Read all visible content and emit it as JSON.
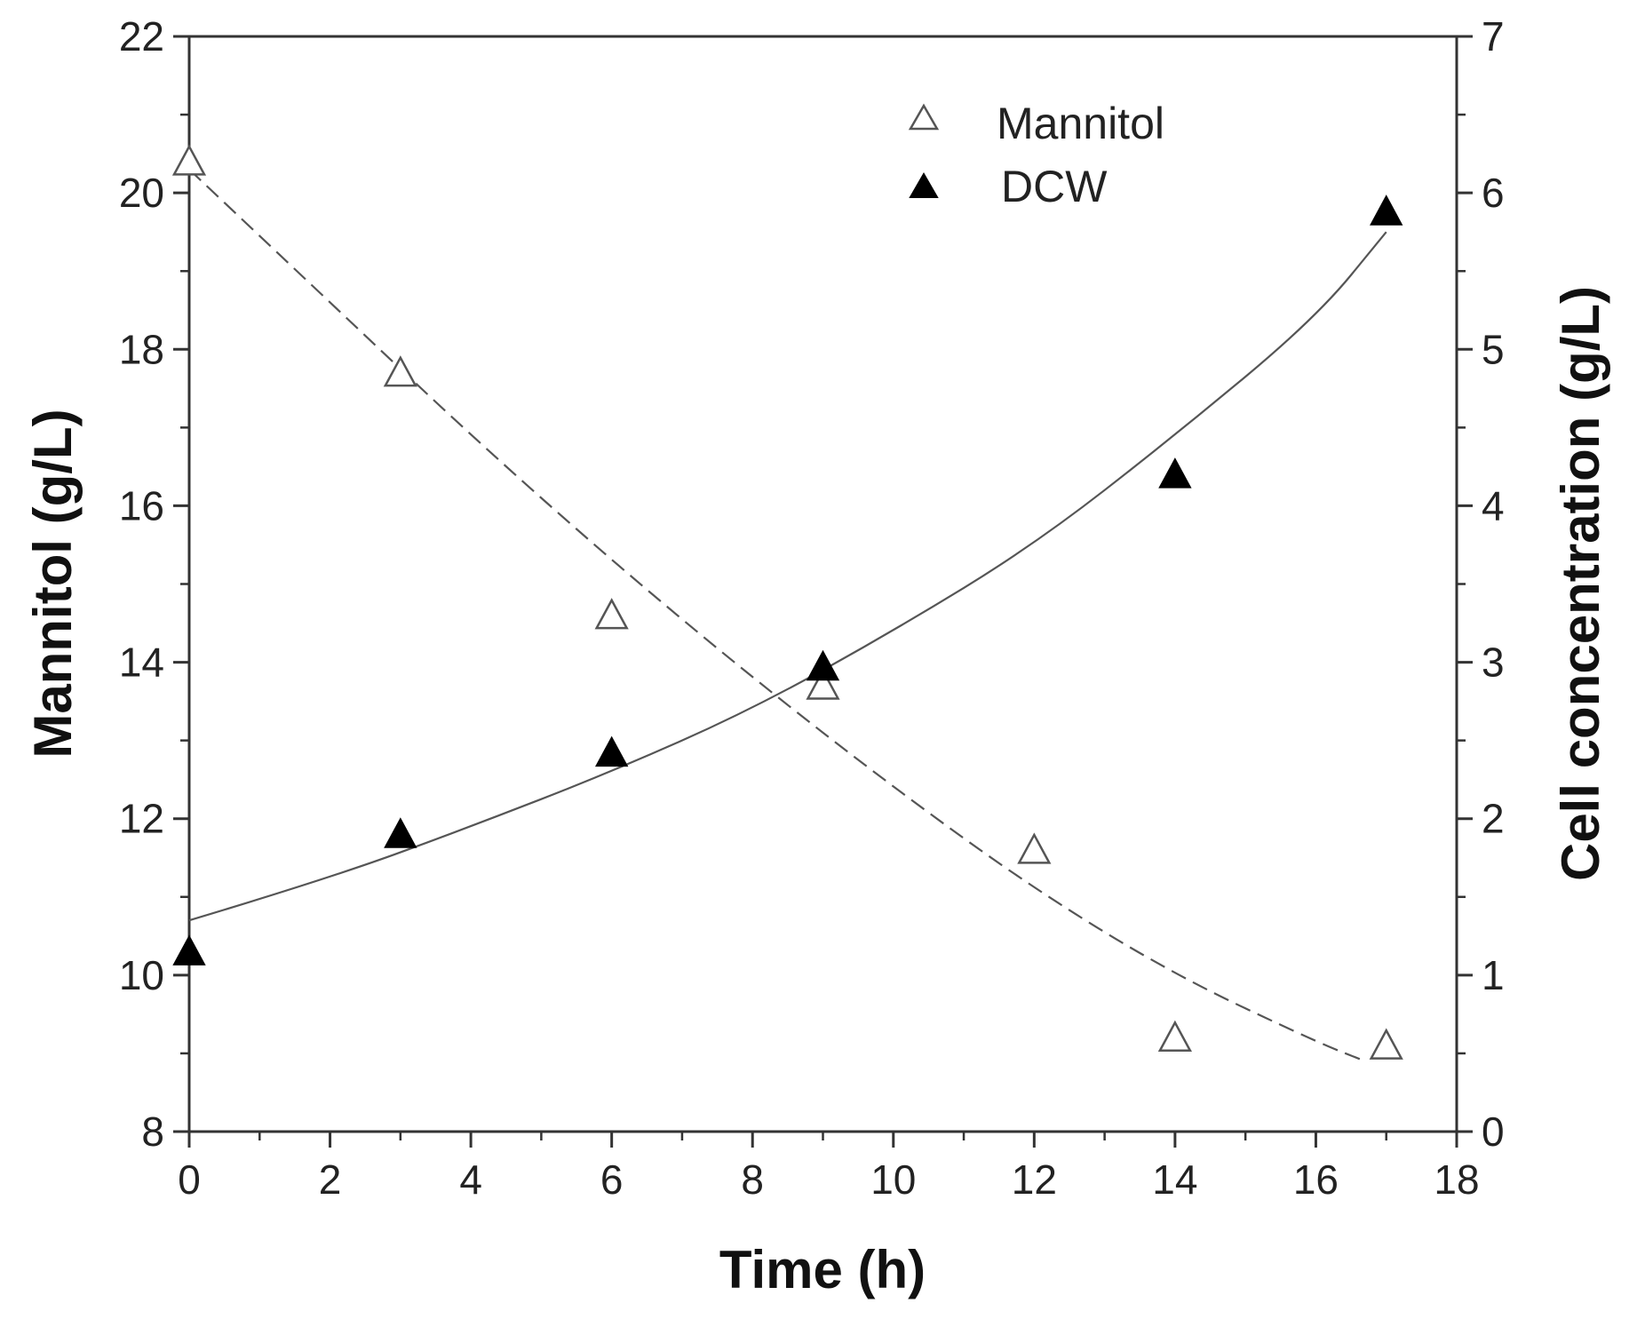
{
  "chart_data": {
    "type": "scatter",
    "xlabel": "Time (h)",
    "ylabel": "Mannitol (g/L)",
    "y2label": "Cell concentration (g/L)",
    "xlim": [
      0,
      18
    ],
    "ylim": [
      8,
      22
    ],
    "y2lim": [
      0,
      7
    ],
    "xticks": [
      0,
      2,
      4,
      6,
      8,
      10,
      12,
      14,
      16,
      18
    ],
    "yticks": [
      8,
      10,
      12,
      14,
      16,
      18,
      20,
      22
    ],
    "y2ticks": [
      0,
      1,
      2,
      3,
      4,
      5,
      6,
      7
    ],
    "grid": false,
    "legend_position": "top-center",
    "series": [
      {
        "name": "Mannitol",
        "axis": "left",
        "marker": "open-triangle",
        "x": [
          0,
          3,
          6,
          9,
          12,
          14,
          17
        ],
        "y": [
          20.4,
          17.7,
          14.6,
          13.7,
          11.6,
          9.2,
          9.1
        ]
      },
      {
        "name": "DCW",
        "axis": "right",
        "marker": "filled-triangle",
        "x": [
          0,
          3,
          6,
          9,
          14,
          17
        ],
        "y": [
          1.15,
          1.9,
          2.42,
          2.97,
          4.2,
          5.88
        ]
      }
    ],
    "fits": [
      {
        "name": "Mannitol fit",
        "axis": "left",
        "style": "dashed",
        "x": [
          0,
          2,
          4,
          6,
          8,
          10,
          12,
          14,
          16,
          16.7
        ],
        "y": [
          20.3,
          18.6,
          16.9,
          15.3,
          13.8,
          12.4,
          11.1,
          10.0,
          9.15,
          8.9
        ]
      },
      {
        "name": "DCW fit",
        "axis": "right",
        "style": "solid",
        "x": [
          0,
          2,
          4,
          6,
          8,
          10,
          12,
          14,
          16,
          17
        ],
        "y": [
          1.35,
          1.62,
          1.95,
          2.3,
          2.7,
          3.2,
          3.75,
          4.45,
          5.2,
          5.75
        ]
      }
    ]
  }
}
